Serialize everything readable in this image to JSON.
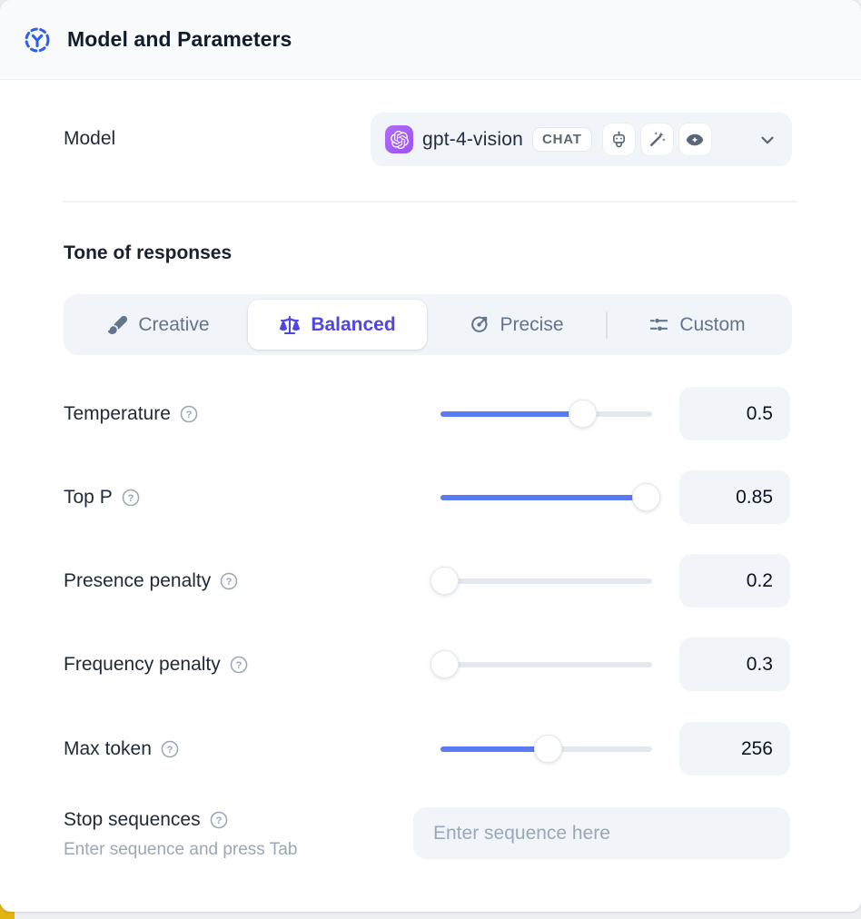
{
  "window": {
    "title": "Model and Parameters"
  },
  "model": {
    "label": "Model",
    "selected": "gpt-4-vision",
    "mode_badge": "CHAT",
    "capability_icons": [
      "robot-icon",
      "wand-sparkles-icon",
      "vision-eye-icon"
    ]
  },
  "tone": {
    "heading": "Tone of responses",
    "options": [
      {
        "label": "Creative",
        "icon": "brush-icon",
        "selected": false
      },
      {
        "label": "Balanced",
        "icon": "scale-icon",
        "selected": true
      },
      {
        "label": "Precise",
        "icon": "target-arrow-icon",
        "selected": false
      },
      {
        "label": "Custom",
        "icon": "sliders-icon",
        "selected": false
      }
    ]
  },
  "parameters": [
    {
      "label": "Temperature",
      "value": "0.5",
      "percent": 67
    },
    {
      "label": "Top P",
      "value": "0.85",
      "percent": 97
    },
    {
      "label": "Presence penalty",
      "value": "0.2",
      "percent": 2
    },
    {
      "label": "Frequency penalty",
      "value": "0.3",
      "percent": 2
    },
    {
      "label": "Max token",
      "value": "256",
      "percent": 51
    }
  ],
  "stop_sequences": {
    "label": "Stop sequences",
    "hint": "Enter sequence and press Tab",
    "placeholder": "Enter sequence here"
  },
  "colors": {
    "accent_indigo": "#4f46e5",
    "slider_blue": "#5b7af5",
    "header_icon_blue": "#2f5fe8",
    "model_logo_purple": "#a863f3",
    "control_bg": "#f1f5f9",
    "corner_accent_yellow": "#e2b411"
  }
}
